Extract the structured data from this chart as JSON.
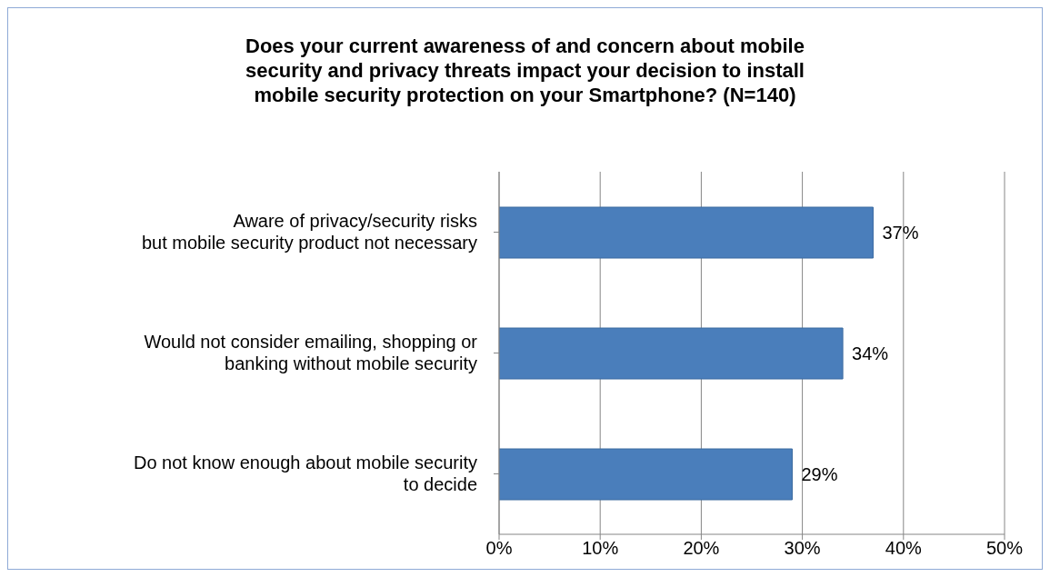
{
  "chart_data": {
    "type": "bar",
    "orientation": "horizontal",
    "title": "Does your current awareness of and concern about mobile security and privacy threats impact your decision to install mobile security protection on your Smartphone? (N=140)",
    "categories": [
      "Aware of privacy/security risks\nbut mobile security product not necessary",
      "Would not consider emailing, shopping or\nbanking without mobile security",
      "Do not know enough about mobile security\nto decide"
    ],
    "values": [
      37,
      34,
      29
    ],
    "value_labels": [
      "37%",
      "34%",
      "29%"
    ],
    "color": "#4a7ebb",
    "xlim": [
      0,
      50
    ],
    "xticks": [
      {
        "value": 0,
        "label": "0%"
      },
      {
        "value": 10,
        "label": "10%"
      },
      {
        "value": 20,
        "label": "20%"
      },
      {
        "value": 30,
        "label": "30%"
      },
      {
        "value": 40,
        "label": "40%"
      },
      {
        "value": 50,
        "label": "50%"
      }
    ],
    "grid": "x"
  }
}
